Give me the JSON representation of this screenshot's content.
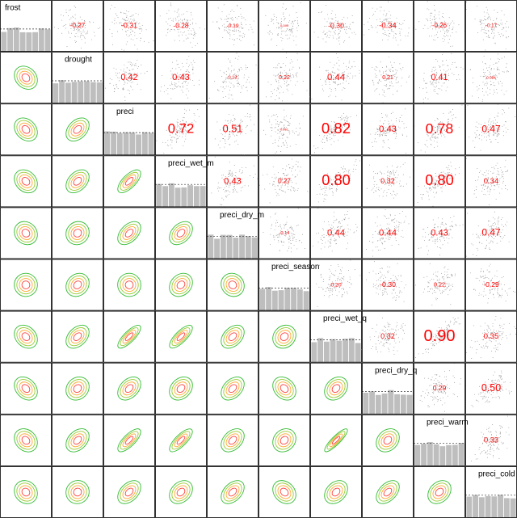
{
  "chart_data": {
    "type": "scatter_matrix",
    "variables": [
      "frost",
      "drought",
      "preci",
      "preci_wet_m",
      "preci_dry_m",
      "preci_season",
      "preci_wet_q",
      "preci_dry_q",
      "preci_warm",
      "preci_cold"
    ],
    "correlations": [
      [
        -0.27,
        -0.31,
        -0.28,
        -0.19,
        0.043,
        -0.3,
        -0.34,
        -0.26,
        -0.17
      ],
      [
        0.42,
        0.43,
        0.13,
        0.22,
        0.44,
        0.21,
        0.41,
        0.084
      ],
      [
        0.72,
        0.51,
        0.041,
        0.82,
        0.43,
        0.78,
        0.47
      ],
      [
        0.43,
        0.27,
        0.8,
        0.32,
        0.8,
        0.34
      ],
      [
        -0.14,
        0.44,
        0.44,
        0.43,
        0.47
      ],
      [
        0.2,
        -0.3,
        0.22,
        -0.29
      ],
      [
        0.32,
        0.9,
        0.35
      ],
      [
        0.29,
        0.5
      ],
      [
        0.33
      ]
    ],
    "value_labels": [
      [
        "-0.27",
        "-0.31",
        "-0.28",
        "-0.19",
        "0.043",
        "-0.30",
        "-0.34",
        "-0.26",
        "-0.17"
      ],
      [
        "0.42",
        "0.43",
        "0.13",
        "0.22",
        "0.44",
        "0.21",
        "0.41",
        "0.084"
      ],
      [
        "0.72",
        "0.51",
        "0.041",
        "0.82",
        "0.43",
        "0.78",
        "0.47"
      ],
      [
        "0.43",
        "0.27",
        "0.80",
        "0.32",
        "0.80",
        "0.34"
      ],
      [
        "-0.14",
        "0.44",
        "0.44",
        "0.43",
        "0.47"
      ],
      [
        "0.20",
        "-0.30",
        "0.22",
        "-0.29"
      ],
      [
        "0.32",
        "0.90",
        "0.35"
      ],
      [
        "0.29",
        "0.50"
      ],
      [
        "0.33"
      ]
    ],
    "text_color": "#ff0000",
    "histogram_color": "#bebebe",
    "contour_colors": [
      "#33bb33",
      "#99cc33",
      "#ffaa33",
      "#ff4444"
    ]
  }
}
